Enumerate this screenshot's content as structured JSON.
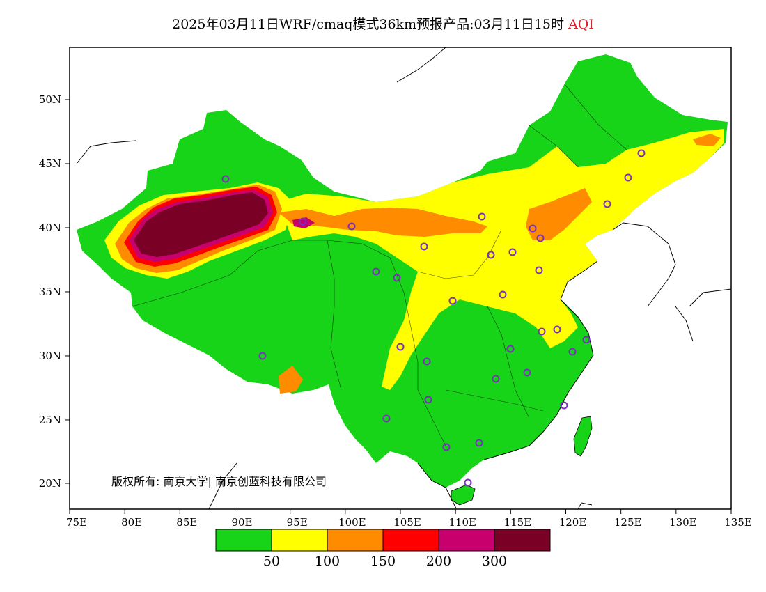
{
  "title": {
    "main": "2025年03月11日WRF/cmaq模式36km预报产品:03月11日15时",
    "variable": "AQI"
  },
  "axes": {
    "lon_ticks": [
      "75E",
      "80E",
      "85E",
      "90E",
      "95E",
      "100E",
      "105E",
      "110E",
      "115E",
      "120E",
      "125E",
      "130E",
      "135E"
    ],
    "lat_ticks": [
      "50N",
      "45N",
      "40N",
      "35N",
      "30N",
      "25N",
      "20N"
    ]
  },
  "copyright": "版权所有: 南京大学| 南京创蓝科技有限公司",
  "legend": {
    "colors": [
      "#18d418",
      "#ffff00",
      "#ff8c00",
      "#ff0000",
      "#c8006e",
      "#7a0025"
    ],
    "labels": [
      "50",
      "100",
      "150",
      "200",
      "300"
    ]
  },
  "station_marker_color": "#7b2fbe",
  "regions": {
    "good": "#18d418",
    "moderate": "#ffff00",
    "unhealthy_sensitive": "#ff8c00",
    "unhealthy": "#ff0000",
    "very_unhealthy": "#c8006e",
    "hazardous": "#7a0025"
  }
}
